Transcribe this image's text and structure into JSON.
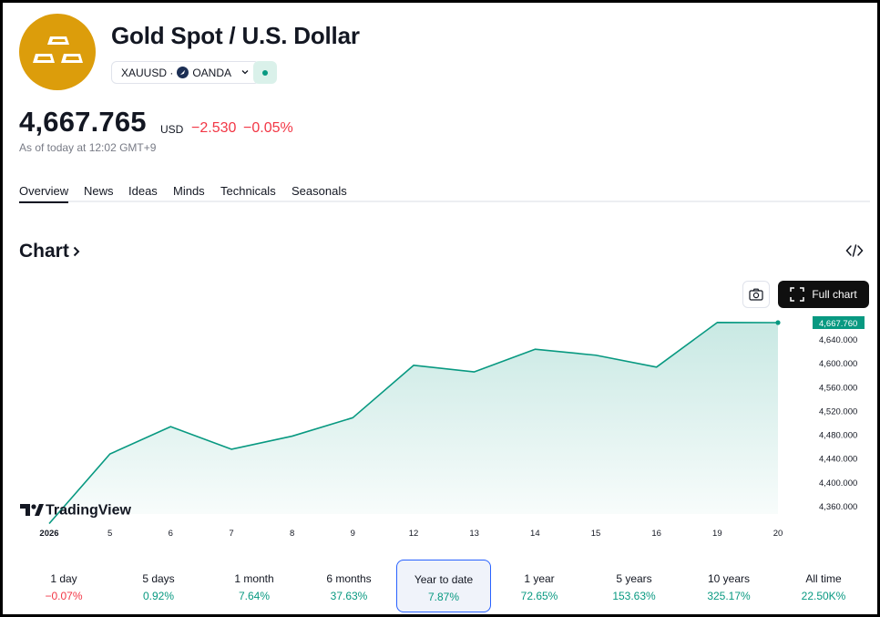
{
  "header": {
    "title": "Gold Spot / U.S. Dollar",
    "symbol_exchange": "XAUUSD · ",
    "exchange": "OANDA",
    "status_color": "#089981",
    "logo_color": "#dc9d0b"
  },
  "quote": {
    "price": "4,667.765",
    "currency": "USD",
    "change": "−2.530",
    "change_percent": "−0.05%",
    "as_of": "As of today at 12:02 GMT+9"
  },
  "tabs": [
    {
      "label": "Overview",
      "active": true
    },
    {
      "label": "News"
    },
    {
      "label": "Ideas"
    },
    {
      "label": "Minds"
    },
    {
      "label": "Technicals"
    },
    {
      "label": "Seasonals"
    }
  ],
  "chart_section": {
    "heading": "Chart",
    "full_chart_label": "Full chart",
    "watermark": "TradingView"
  },
  "chart_data": {
    "type": "area",
    "categories": [
      "2026",
      "5",
      "6",
      "7",
      "8",
      "9",
      "12",
      "13",
      "14",
      "15",
      "16",
      "19",
      "20"
    ],
    "values": [
      4330,
      4447,
      4493,
      4455,
      4477,
      4508,
      4596,
      4585,
      4623,
      4613,
      4593,
      4668,
      4667.76
    ],
    "y_ticks": [
      "4,360.000",
      "4,400.000",
      "4,440.000",
      "4,480.000",
      "4,520.000",
      "4,560.000",
      "4,600.000",
      "4,640.000"
    ],
    "y_tick_values": [
      4360,
      4400,
      4440,
      4480,
      4520,
      4560,
      4600,
      4640
    ],
    "last_value_label": "4,667.760",
    "last_value": 4667.76,
    "ylim": [
      4340,
      4680
    ],
    "line_color": "#089981",
    "grid": false
  },
  "ranges": [
    {
      "label": "1 day",
      "value": "−0.07%",
      "dir": "neg"
    },
    {
      "label": "5 days",
      "value": "0.92%",
      "dir": "pos"
    },
    {
      "label": "1 month",
      "value": "7.64%",
      "dir": "pos"
    },
    {
      "label": "6 months",
      "value": "37.63%",
      "dir": "pos"
    },
    {
      "label": "Year to date",
      "value": "7.87%",
      "dir": "pos",
      "selected": true
    },
    {
      "label": "1 year",
      "value": "72.65%",
      "dir": "pos"
    },
    {
      "label": "5 years",
      "value": "153.63%",
      "dir": "pos"
    },
    {
      "label": "10 years",
      "value": "325.17%",
      "dir": "pos"
    },
    {
      "label": "All time",
      "value": "22.50K%",
      "dir": "pos"
    }
  ]
}
